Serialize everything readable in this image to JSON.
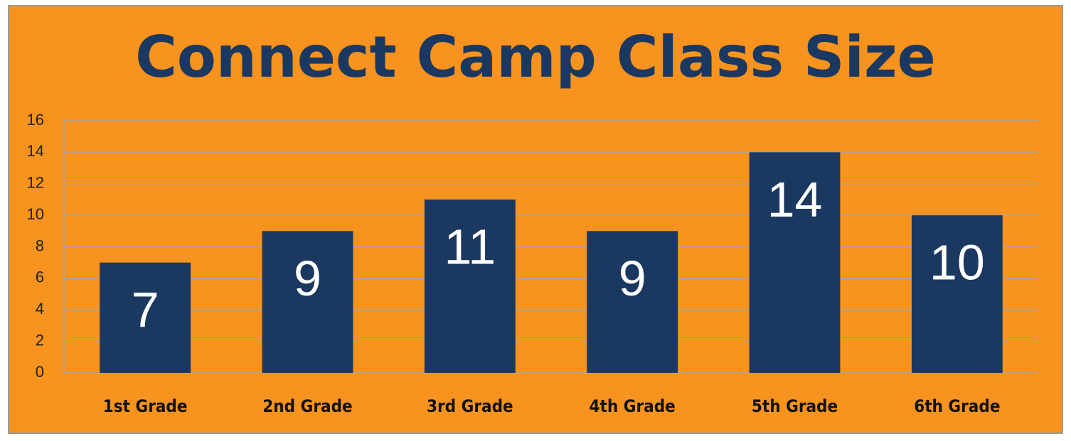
{
  "chart_data": {
    "type": "bar",
    "title": "Connect Camp Class Size",
    "categories": [
      "1st Grade",
      "2nd Grade",
      "3rd Grade",
      "4th Grade",
      "5th Grade",
      "6th Grade"
    ],
    "values": [
      7,
      9,
      11,
      9,
      14,
      10
    ],
    "color": "#1b3861",
    "ylim": [
      0,
      16
    ],
    "yticks": [
      0,
      2,
      4,
      6,
      8,
      10,
      12,
      14,
      16
    ],
    "grid": true
  }
}
